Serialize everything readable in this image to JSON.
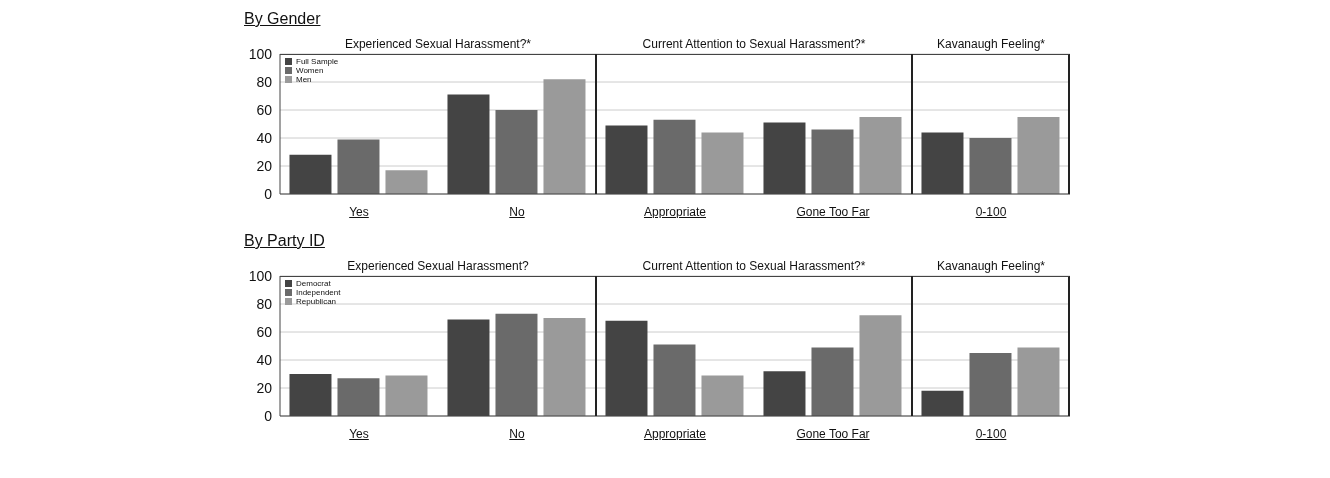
{
  "chart_data": [
    {
      "type": "bar",
      "title": "By Gender",
      "annotations": [
        "Experienced Sexual Harassment?*",
        "Current Attention to Sexual Harassment?*",
        "Kavanaugh Feeling*"
      ],
      "categories": [
        "Yes",
        "No",
        "Appropriate",
        "Gone Too Far",
        "0-100"
      ],
      "series": [
        {
          "name": "Full Sample",
          "color": "#444444",
          "values": [
            28,
            71,
            49,
            51,
            44
          ]
        },
        {
          "name": "Women",
          "color": "#6a6a6a",
          "values": [
            39,
            60,
            53,
            46,
            40
          ]
        },
        {
          "name": "Men",
          "color": "#9a9a9a",
          "values": [
            17,
            82,
            44,
            55,
            55
          ]
        }
      ],
      "ylim": [
        0,
        100
      ],
      "yticks": [
        0,
        20,
        40,
        60,
        80,
        100
      ],
      "grid": "y",
      "legend": "top left"
    },
    {
      "type": "bar",
      "title": "By Party ID",
      "annotations": [
        "Experienced Sexual Harassment?",
        "Current Attention to Sexual Harassment?*",
        "Kavanaugh Feeling*"
      ],
      "categories": [
        "Yes",
        "No",
        "Appropriate",
        "Gone Too Far",
        "0-100"
      ],
      "series": [
        {
          "name": "Democrat",
          "color": "#444444",
          "values": [
            30,
            69,
            68,
            32,
            18
          ]
        },
        {
          "name": "Independent",
          "color": "#6a6a6a",
          "values": [
            27,
            73,
            51,
            49,
            45
          ]
        },
        {
          "name": "Republican",
          "color": "#9a9a9a",
          "values": [
            29,
            70,
            29,
            72,
            49
          ]
        }
      ],
      "ylim": [
        0,
        100
      ],
      "yticks": [
        0,
        20,
        40,
        60,
        80,
        100
      ],
      "grid": "y",
      "legend": "top left"
    }
  ]
}
